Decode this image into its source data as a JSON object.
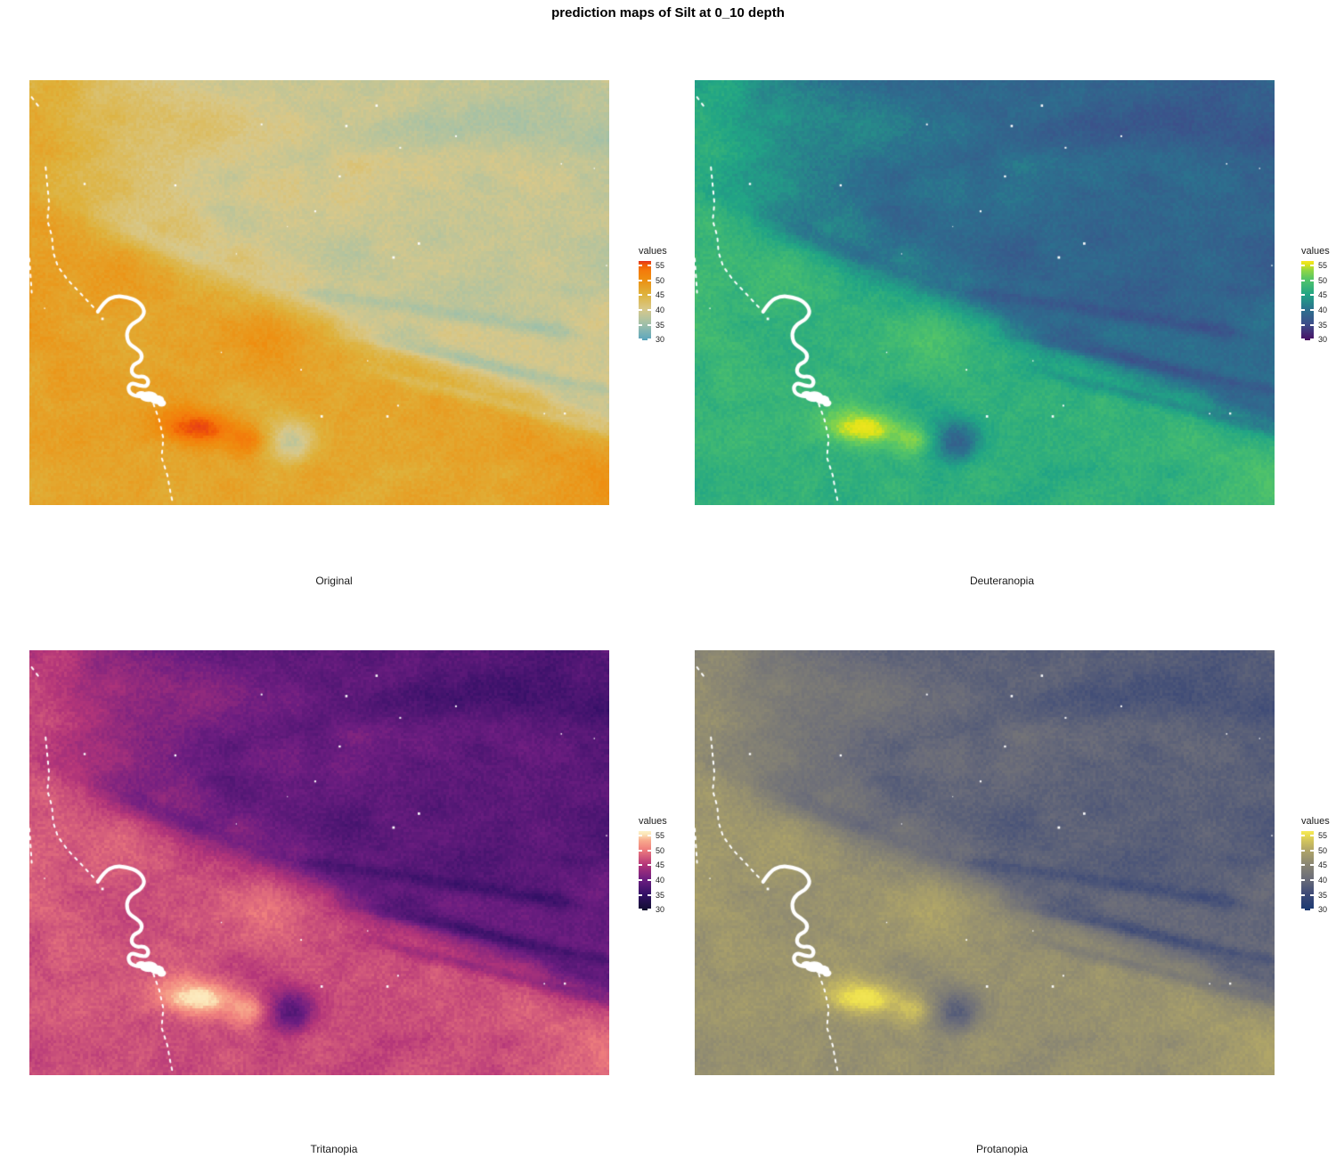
{
  "figure": {
    "title": "prediction maps of Silt at 0_10 depth"
  },
  "legend": {
    "title": "values",
    "ticks": [
      55,
      50,
      45,
      40,
      35,
      30
    ],
    "value_min": 29.5,
    "value_max": 56.2
  },
  "panels": [
    {
      "id": "original",
      "caption": "Original",
      "palette": {
        "values": [
          28,
          30,
          35,
          40,
          45,
          50,
          53,
          55,
          58
        ],
        "colors": [
          "#4f9cb4",
          "#61a8bd",
          "#a0c0a8",
          "#d8c88a",
          "#deb23c",
          "#ee8e10",
          "#f47a0b",
          "#f15b05",
          "#e2311f"
        ]
      }
    },
    {
      "id": "deuteranopia",
      "caption": "Deuteranopia",
      "palette": {
        "values": [
          28,
          30,
          35,
          40,
          45,
          50,
          53,
          55,
          58
        ],
        "colors": [
          "#440a54",
          "#481467",
          "#3d4e8a",
          "#2c718e",
          "#21a585",
          "#54c568",
          "#8ed645",
          "#dde319",
          "#f8e621"
        ]
      }
    },
    {
      "id": "tritanopia",
      "caption": "Tritanopia",
      "palette": {
        "values": [
          28,
          30,
          35,
          40,
          45,
          50,
          53,
          55,
          58
        ],
        "colors": [
          "#080620",
          "#140e35",
          "#341067",
          "#6e1e81",
          "#b53679",
          "#ef7e7d",
          "#f8a98c",
          "#fbe3b5",
          "#fdf1c8"
        ]
      }
    },
    {
      "id": "protanopia",
      "caption": "Protanopia",
      "palette": {
        "values": [
          28,
          30,
          35,
          40,
          45,
          50,
          53,
          55,
          58
        ],
        "colors": [
          "#132f68",
          "#1c3a72",
          "#3d4a77",
          "#6a6c79",
          "#8a8673",
          "#b2a767",
          "#d2c45c",
          "#ecdf4e",
          "#f5e958"
        ]
      }
    }
  ],
  "map_features": {
    "na_color": "#ffffff",
    "river": [
      [
        0.118,
        0.545
      ],
      [
        0.13,
        0.52
      ],
      [
        0.148,
        0.508
      ],
      [
        0.168,
        0.51
      ],
      [
        0.188,
        0.52
      ],
      [
        0.2,
        0.543
      ],
      [
        0.192,
        0.563
      ],
      [
        0.175,
        0.575
      ],
      [
        0.167,
        0.596
      ],
      [
        0.171,
        0.62
      ],
      [
        0.184,
        0.631
      ],
      [
        0.195,
        0.645
      ],
      [
        0.192,
        0.662
      ],
      [
        0.179,
        0.669
      ],
      [
        0.175,
        0.687
      ],
      [
        0.184,
        0.699
      ],
      [
        0.197,
        0.696
      ],
      [
        0.206,
        0.706
      ],
      [
        0.203,
        0.721
      ],
      [
        0.189,
        0.719
      ],
      [
        0.177,
        0.712
      ],
      [
        0.17,
        0.722
      ],
      [
        0.173,
        0.737
      ],
      [
        0.186,
        0.745
      ],
      [
        0.2,
        0.743
      ],
      [
        0.211,
        0.747
      ]
    ],
    "lake": [
      [
        0.206,
        0.745,
        10,
        6
      ],
      [
        0.22,
        0.752,
        8,
        5
      ],
      [
        0.193,
        0.74,
        6,
        4
      ],
      [
        0.228,
        0.76,
        5,
        4
      ]
    ],
    "streams": [
      [
        [
          0.028,
          0.205
        ],
        [
          0.031,
          0.248
        ],
        [
          0.034,
          0.29
        ],
        [
          0.031,
          0.33
        ],
        [
          0.039,
          0.368
        ],
        [
          0.041,
          0.405
        ],
        [
          0.049,
          0.438
        ],
        [
          0.066,
          0.47
        ],
        [
          0.087,
          0.5
        ],
        [
          0.106,
          0.528
        ],
        [
          0.118,
          0.545
        ]
      ],
      [
        [
          0.214,
          0.762
        ],
        [
          0.224,
          0.8
        ],
        [
          0.231,
          0.843
        ],
        [
          0.228,
          0.888
        ],
        [
          0.238,
          0.93
        ],
        [
          0.243,
          0.968
        ],
        [
          0.248,
          1.0
        ]
      ],
      [
        [
          0.004,
          0.04
        ],
        [
          0.016,
          0.062
        ]
      ],
      [
        [
          0.0,
          0.42
        ],
        [
          0.004,
          0.5
        ]
      ]
    ]
  },
  "chart_data": {
    "type": "heatmap",
    "title": "prediction maps of Silt at 0_10 depth",
    "panels": [
      "Original",
      "Deuteranopia",
      "Tritanopia",
      "Protanopia"
    ],
    "legend_label": "values",
    "legend_ticks": [
      55,
      50,
      45,
      40,
      35,
      30
    ],
    "value_range": [
      30,
      55
    ],
    "variable": "Silt",
    "depth": "0_10",
    "layout": "2x2 grid of raster prediction maps, vertical colorbar legend right of each map"
  }
}
